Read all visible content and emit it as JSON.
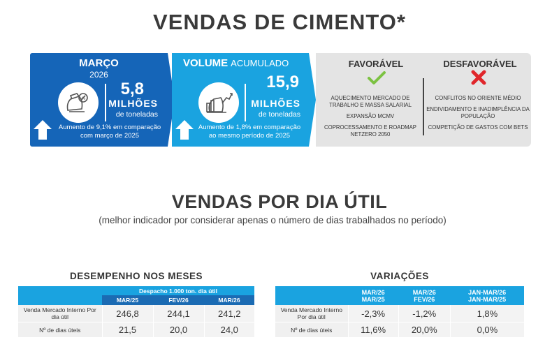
{
  "header": {
    "title": "VENDAS DE CIMENTO*"
  },
  "marco": {
    "month": "MARÇO",
    "year": "2026",
    "value": "5,8",
    "unit": "MILHÕES",
    "unit_sub": "de toneladas",
    "note_line1": "Aumento de 9,1% em comparação",
    "note_line2": "com março de 2025"
  },
  "volume": {
    "title_bold": "VOLUME",
    "title_light": "ACUMULADO",
    "value": "15,9",
    "unit": "MILHÕES",
    "unit_sub": "de toneladas",
    "note_line1": "Aumento de 1,8% em comparação",
    "note_line2": "ao mesmo período de 2025"
  },
  "factors": {
    "favorable_title": "FAVORÁVEL",
    "unfavorable_title": "DESFAVORÁVEL",
    "favorable": [
      "AQUECIMENTO MERCADO DE TRABALHO E MASSA SALARIAL",
      "EXPANSÃO MCMV",
      "COPROCESSAMENTO E ROADMAP NETZERO 2050"
    ],
    "unfavorable": [
      "CONFLITOS NO ORIENTE MÉDIO",
      "ENDIVIDAMENTO E INADIMPLÊNCIA DA POPULAÇÃO",
      "COMPETIÇÃO DE GASTOS COM BETS"
    ],
    "colors": {
      "check": "#7cc242",
      "x": "#e0262b"
    }
  },
  "section2": {
    "title": "VENDAS POR DIA ÚTIL",
    "subtitle": "(melhor indicador por considerar apenas o número de dias trabalhados no período)"
  },
  "table_left": {
    "title": "DESEMPENHO NOS MESES",
    "group_header": "Despacho 1.000 ton. dia útil",
    "columns": [
      "MAR/25",
      "FEV/26",
      "MAR/26"
    ],
    "rows": [
      {
        "label": "Venda Mercado Interno Por dia útil",
        "values": [
          "246,8",
          "244,1",
          "241,2"
        ]
      },
      {
        "label": "Nº de dias úteis",
        "values": [
          "21,5",
          "20,0",
          "24,0"
        ]
      }
    ]
  },
  "table_right": {
    "title": "VARIAÇÕES",
    "columns": [
      {
        "top": "MAR/26",
        "bottom": "MAR/25"
      },
      {
        "top": "MAR/26",
        "bottom": "FEV/26"
      },
      {
        "top": "JAN-MAR/26",
        "bottom": "JAN-MAR/25"
      }
    ],
    "rows": [
      {
        "label": "Venda Mercado Interno Por dia útil",
        "values": [
          "-2,3%",
          "-1,2%",
          "1,8%"
        ]
      },
      {
        "label": "Nº de dias úteis",
        "values": [
          "11,6%",
          "20,0%",
          "0,0%"
        ]
      }
    ]
  },
  "colors": {
    "dark_blue": "#1565b8",
    "light_blue": "#1aa3e0",
    "grey": "#e4e4e4"
  }
}
